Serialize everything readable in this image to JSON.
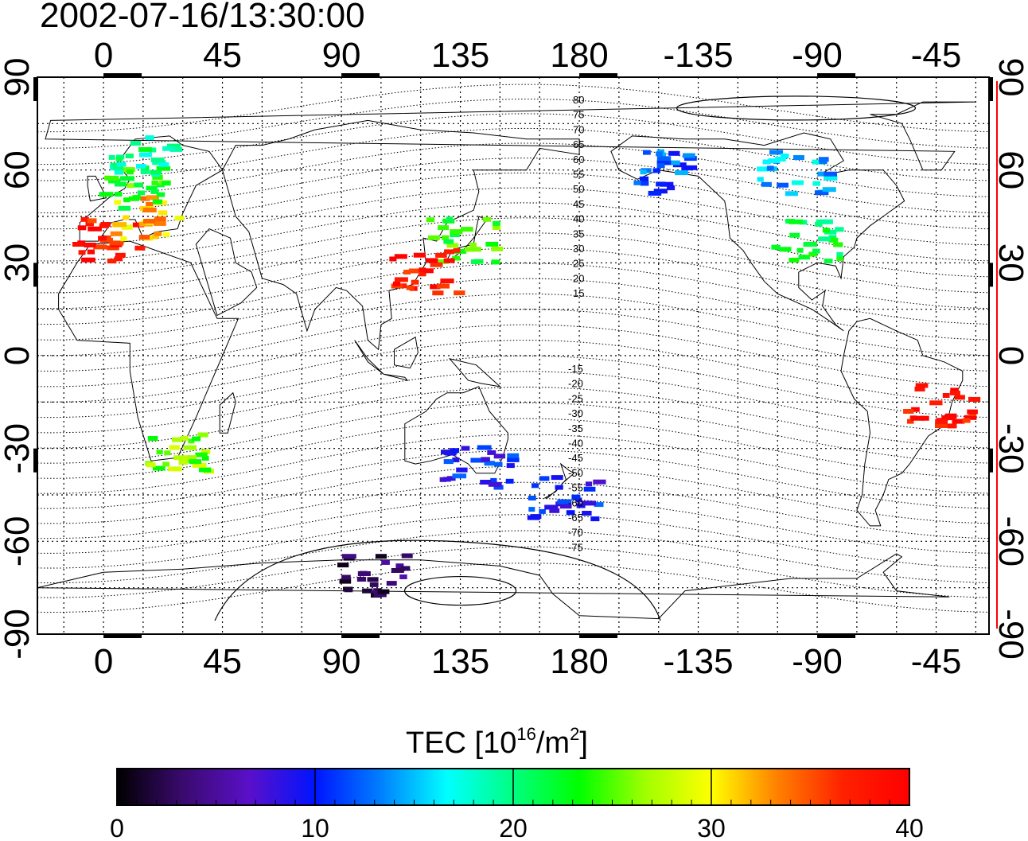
{
  "title": "2002-07-16/13:30:00",
  "map": {
    "lon_tick_labels": [
      "0",
      "45",
      "90",
      "135",
      "180",
      "-135",
      "-90",
      "-45"
    ],
    "lat_tick_labels": [
      "90",
      "60",
      "30",
      "0",
      "-30",
      "-60",
      "-90"
    ],
    "lon_range": [
      -25,
      335
    ],
    "lat_range": [
      -90,
      90
    ],
    "grid": "dotted",
    "contour_labels_north": [
      "80",
      "75",
      "70",
      "65",
      "60",
      "55",
      "50",
      "45",
      "40",
      "35",
      "30",
      "25",
      "20",
      "15"
    ],
    "contour_labels_south": [
      "-15",
      "-20",
      "-25",
      "-30",
      "-35",
      "-40",
      "-45",
      "-50",
      "-55",
      "-60",
      "-65",
      "-70",
      "-75"
    ]
  },
  "colorbar": {
    "title_main": "TEC  [10",
    "title_sup1": "16",
    "title_mid": "/m",
    "title_sup2": "2",
    "title_end": "]",
    "tick_labels": [
      "0",
      "10",
      "20",
      "30",
      "40"
    ],
    "range": [
      0,
      40
    ],
    "colors": [
      "#000000",
      "#3a0a6e",
      "#5a10c8",
      "#0014ff",
      "#0080ff",
      "#00ffff",
      "#00ff80",
      "#00ff00",
      "#a0ff00",
      "#ffff00",
      "#ff8000",
      "#ff2000",
      "#ff0000"
    ]
  },
  "tec_patches": [
    {
      "region": "Europe",
      "lon": 0,
      "lat": 38,
      "tec": 38
    },
    {
      "region": "Europe",
      "lon": 15,
      "lat": 45,
      "tec": 32
    },
    {
      "region": "Europe",
      "lon": 10,
      "lat": 55,
      "tec": 24
    },
    {
      "region": "Scandinavia",
      "lon": 15,
      "lat": 65,
      "tec": 20
    },
    {
      "region": "Japan",
      "lon": 135,
      "lat": 38,
      "tec": 24
    },
    {
      "region": "China",
      "lon": 120,
      "lat": 28,
      "tec": 38
    },
    {
      "region": "North America",
      "lon": -95,
      "lat": 38,
      "tec": 22
    },
    {
      "region": "Alaska",
      "lon": -150,
      "lat": 60,
      "tec": 12
    },
    {
      "region": "Canada",
      "lon": -100,
      "lat": 60,
      "tec": 15
    },
    {
      "region": "South America",
      "lon": -45,
      "lat": -15,
      "tec": 38
    },
    {
      "region": "Australia",
      "lon": 140,
      "lat": -35,
      "tec": 10
    },
    {
      "region": "New Zealand",
      "lon": 173,
      "lat": -45,
      "tec": 10
    },
    {
      "region": "Antarctica",
      "lon": 100,
      "lat": -70,
      "tec": 3
    },
    {
      "region": "Southern Africa",
      "lon": 25,
      "lat": -30,
      "tec": 26
    }
  ]
}
